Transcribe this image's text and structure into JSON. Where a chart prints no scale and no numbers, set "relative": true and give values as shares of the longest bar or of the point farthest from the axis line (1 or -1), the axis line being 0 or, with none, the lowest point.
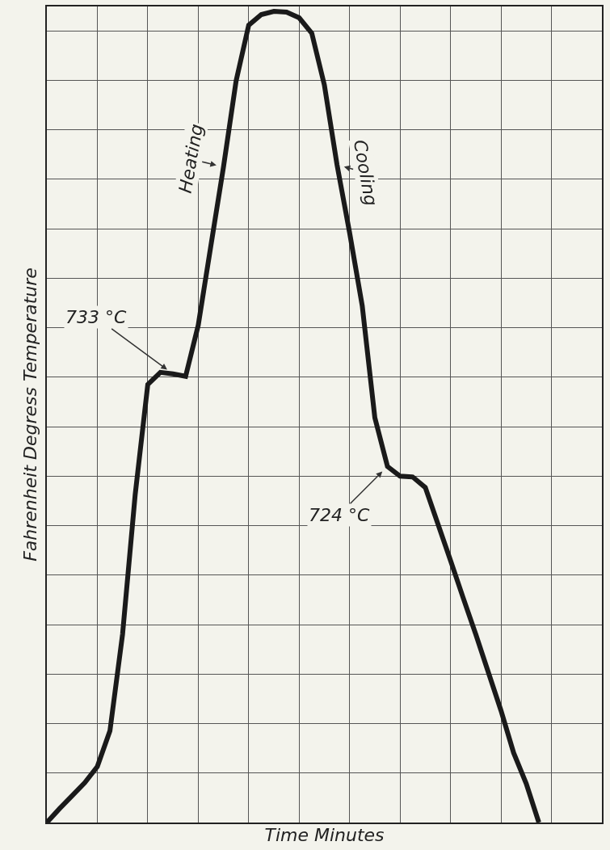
{
  "chart_data": {
    "type": "line",
    "relative": true,
    "xlabel": "Time Minutes",
    "ylabel": "Fahrenheit Degress Temperature",
    "categories": [
      null,
      null,
      null,
      null,
      null,
      null,
      null,
      null,
      null,
      null,
      null,
      null,
      null,
      null,
      null,
      null,
      null,
      null,
      null,
      null,
      null,
      null,
      null,
      null,
      null,
      null,
      null,
      null,
      null,
      null,
      null,
      null,
      null,
      null,
      null,
      null,
      null,
      null,
      null,
      null
    ],
    "series": [
      {
        "color": "#1a1a1a",
        "values": [
          0,
          0.017,
          0.033,
          0.049,
          0.069,
          0.113,
          0.232,
          0.404,
          0.54,
          0.555,
          0.553,
          0.55,
          0.613,
          0.711,
          0.808,
          0.914,
          0.983,
          0.996,
          1.0,
          0.999,
          0.992,
          0.973,
          0.909,
          0.811,
          0.727,
          0.637,
          0.499,
          0.439,
          0.427,
          0.426,
          0.413,
          0.368,
          0.323,
          0.277,
          0.232,
          0.185,
          0.138,
          0.086,
          0.048,
          0
        ]
      }
    ],
    "annotations": [
      "733 °C",
      "Heating",
      "Cooling",
      "724 °C"
    ],
    "grid": true,
    "marker": "none",
    "line_style": "solid",
    "legend": false
  }
}
